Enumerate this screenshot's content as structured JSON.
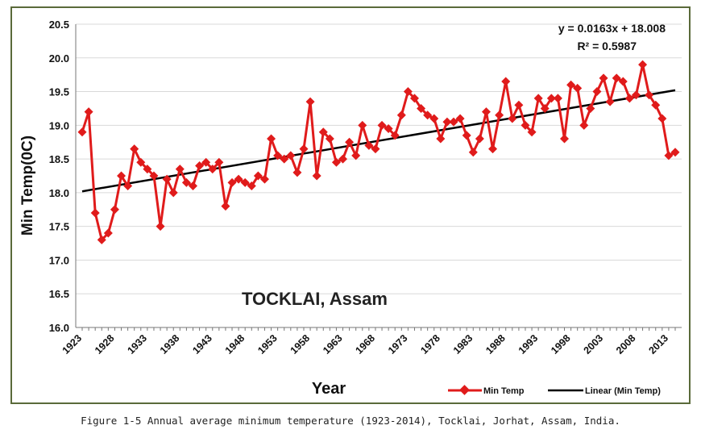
{
  "caption": "Figure 1-5  Annual average minimum temperature (1923-2014), Tocklai, Jorhat, Assam, India.",
  "colors": {
    "series": "#e01b1b",
    "trend": "#000000",
    "frame": "#5a6a3a",
    "grid": "#d9d9d9"
  },
  "chart_data": {
    "type": "line",
    "title": "",
    "annotation_title": "TOCKLAI, Assam",
    "equation": "y = 0.0163x + 18.008",
    "r_squared": "R² = 0.5987",
    "xlabel": "Year",
    "ylabel": "Min Temp(0C)",
    "ylim": [
      16.0,
      20.5
    ],
    "yticks": [
      "16.0",
      "16.5",
      "17.0",
      "17.5",
      "18.0",
      "18.5",
      "19.0",
      "19.5",
      "20.0",
      "20.5"
    ],
    "xticks": [
      "1923",
      "1928",
      "1933",
      "1938",
      "1943",
      "1948",
      "1953",
      "1958",
      "1963",
      "1968",
      "1973",
      "1978",
      "1983",
      "1988",
      "1993",
      "1998",
      "2003",
      "2008",
      "2013"
    ],
    "grid": "horizontal",
    "legend_position": "bottom-right",
    "series": [
      {
        "name": "Min Temp",
        "x": [
          1923,
          1924,
          1925,
          1926,
          1927,
          1928,
          1929,
          1930,
          1931,
          1932,
          1933,
          1934,
          1935,
          1936,
          1937,
          1938,
          1939,
          1940,
          1941,
          1942,
          1943,
          1944,
          1945,
          1946,
          1947,
          1948,
          1949,
          1950,
          1951,
          1952,
          1953,
          1954,
          1955,
          1956,
          1957,
          1958,
          1959,
          1960,
          1961,
          1962,
          1963,
          1964,
          1965,
          1966,
          1967,
          1968,
          1969,
          1970,
          1971,
          1972,
          1973,
          1974,
          1975,
          1976,
          1977,
          1978,
          1979,
          1980,
          1981,
          1982,
          1983,
          1984,
          1985,
          1986,
          1987,
          1988,
          1989,
          1990,
          1991,
          1992,
          1993,
          1994,
          1995,
          1996,
          1997,
          1998,
          1999,
          2000,
          2001,
          2002,
          2003,
          2004,
          2005,
          2006,
          2007,
          2008,
          2009,
          2010,
          2011,
          2012,
          2013,
          2014
        ],
        "values": [
          18.9,
          19.2,
          17.7,
          17.3,
          17.4,
          17.75,
          18.25,
          18.1,
          18.65,
          18.45,
          18.35,
          18.25,
          17.5,
          18.2,
          18.0,
          18.35,
          18.15,
          18.1,
          18.4,
          18.45,
          18.35,
          18.45,
          17.8,
          18.15,
          18.2,
          18.15,
          18.1,
          18.25,
          18.2,
          18.8,
          18.55,
          18.5,
          18.55,
          18.3,
          18.65,
          19.35,
          18.25,
          18.9,
          18.8,
          18.45,
          18.5,
          18.75,
          18.55,
          19.0,
          18.7,
          18.65,
          19.0,
          18.95,
          18.85,
          19.15,
          19.5,
          19.4,
          19.25,
          19.15,
          19.1,
          18.8,
          19.05,
          19.05,
          19.1,
          18.85,
          18.6,
          18.8,
          19.2,
          18.65,
          19.15,
          19.65,
          19.1,
          19.3,
          19.0,
          18.9,
          19.4,
          19.25,
          19.4,
          19.4,
          18.8,
          19.6,
          19.55,
          19.0,
          19.25,
          19.5,
          19.7,
          19.35,
          19.7,
          19.65,
          19.4,
          19.45,
          19.9,
          19.45,
          19.3,
          19.1,
          18.55,
          18.6
        ]
      },
      {
        "name": "Linear (Min Temp)",
        "x": [
          1923,
          2014
        ],
        "values": [
          18.02,
          19.52
        ]
      }
    ]
  }
}
